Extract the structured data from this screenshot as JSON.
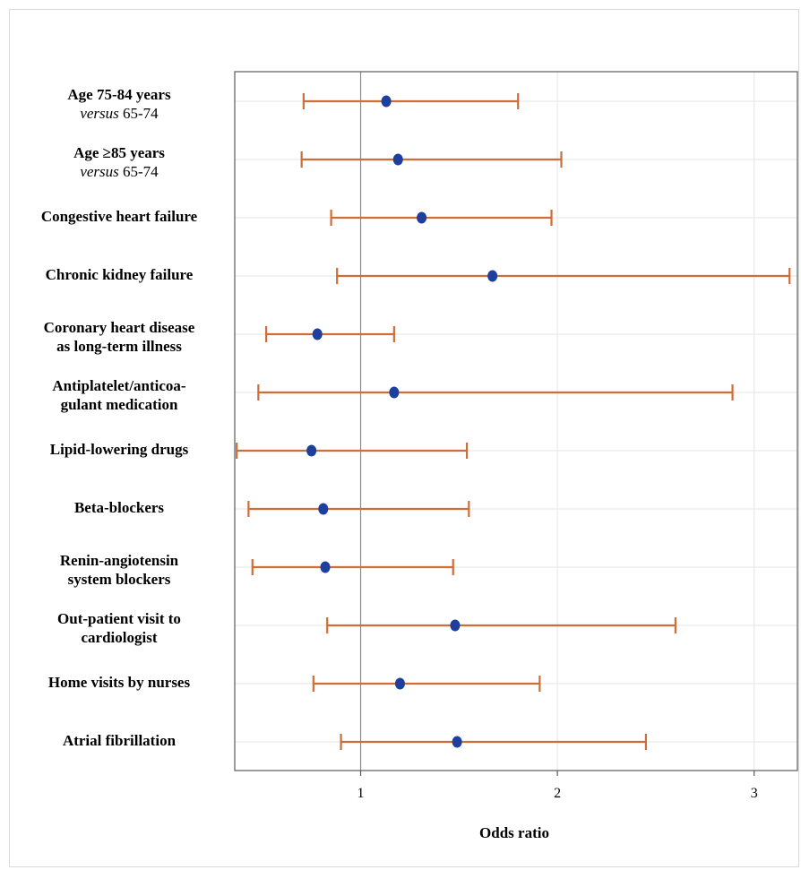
{
  "chart_data": {
    "type": "forest",
    "xlabel": "Odds ratio",
    "xlim": [
      0.36,
      3.22
    ],
    "xticks": [
      1,
      2,
      3
    ],
    "reference_line": 1,
    "grid": true,
    "rows": [
      {
        "label": "Age 75-84 years",
        "sub_italic": "versus",
        "sub_rest": "65-74",
        "or": 1.13,
        "lo": 0.71,
        "hi": 1.8
      },
      {
        "label": "Age ≥85 years",
        "sub_italic": "versus",
        "sub_rest": "65-74",
        "or": 1.19,
        "lo": 0.7,
        "hi": 2.02
      },
      {
        "label": "Congestive heart failure",
        "or": 1.31,
        "lo": 0.85,
        "hi": 1.97
      },
      {
        "label": "Chronic kidney failure",
        "or": 1.67,
        "lo": 0.88,
        "hi": 3.18
      },
      {
        "label": "Coronary heart disease",
        "label2": "as long-term illness",
        "or": 0.78,
        "lo": 0.52,
        "hi": 1.17
      },
      {
        "label": "Antiplatelet/anticoa-",
        "label2": "gulant medication",
        "or": 1.17,
        "lo": 0.48,
        "hi": 2.89
      },
      {
        "label": "Lipid-lowering drugs",
        "or": 0.75,
        "lo": 0.37,
        "hi": 1.54
      },
      {
        "label": "Beta-blockers",
        "or": 0.81,
        "lo": 0.43,
        "hi": 1.55
      },
      {
        "label": "Renin-angiotensin",
        "label2": "system blockers",
        "or": 0.82,
        "lo": 0.45,
        "hi": 1.47
      },
      {
        "label": "Out-patient visit to",
        "label2": "cardiologist",
        "or": 1.48,
        "lo": 0.83,
        "hi": 2.6
      },
      {
        "label": "Home visits by nurses",
        "or": 1.2,
        "lo": 0.76,
        "hi": 1.91
      },
      {
        "label": "Atrial fibrillation",
        "or": 1.49,
        "lo": 0.9,
        "hi": 2.45
      }
    ],
    "colors": {
      "ci": "#cf6d36",
      "point": "#1f3f9c",
      "grid": "#e6e6e6",
      "ref": "#8c8c8c",
      "axis": "#5a5a5a"
    }
  }
}
